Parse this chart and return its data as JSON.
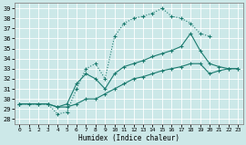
{
  "xlabel": "Humidex (Indice chaleur)",
  "xlim": [
    -0.5,
    23.5
  ],
  "ylim": [
    27.5,
    39.5
  ],
  "xticks": [
    0,
    1,
    2,
    3,
    4,
    5,
    6,
    7,
    8,
    9,
    10,
    11,
    12,
    13,
    14,
    15,
    16,
    17,
    18,
    19,
    20,
    21,
    22,
    23
  ],
  "yticks": [
    28,
    29,
    30,
    31,
    32,
    33,
    34,
    35,
    36,
    37,
    38,
    39
  ],
  "bg_color": "#cce8e8",
  "grid_color": "#b0d8d8",
  "line_color": "#1a7a6e",
  "line1_x": [
    0,
    1,
    3,
    4,
    5,
    6,
    7,
    8,
    9,
    10,
    11,
    12,
    13,
    14,
    15,
    16,
    17,
    18,
    19,
    20
  ],
  "line1_y": [
    29.5,
    29.5,
    29.5,
    28.5,
    28.7,
    31.0,
    33.0,
    33.5,
    32.0,
    36.2,
    37.5,
    38.0,
    38.2,
    38.5,
    39.0,
    38.2,
    38.0,
    37.5,
    36.5,
    36.2
  ],
  "line1_style": "--",
  "line2_x": [
    0,
    2,
    3,
    4,
    5,
    6,
    7,
    8,
    9,
    10,
    11,
    12,
    13,
    14,
    15,
    16,
    17,
    18,
    19,
    20,
    21,
    22,
    23
  ],
  "line2_y": [
    29.5,
    29.5,
    29.5,
    29.2,
    29.5,
    31.5,
    32.5,
    32.0,
    31.0,
    32.5,
    33.2,
    33.5,
    33.8,
    34.2,
    34.5,
    34.8,
    35.2,
    36.5,
    34.8,
    33.5,
    33.2,
    33.0,
    33.0
  ],
  "line3_x": [
    0,
    2,
    3,
    4,
    5,
    6,
    7,
    8,
    9,
    10,
    11,
    12,
    13,
    14,
    15,
    16,
    17,
    18,
    19,
    20,
    21,
    22,
    23
  ],
  "line3_y": [
    29.5,
    29.5,
    29.5,
    29.2,
    29.2,
    29.5,
    30.0,
    30.0,
    30.5,
    31.0,
    31.5,
    32.0,
    32.2,
    32.5,
    32.8,
    33.0,
    33.2,
    33.5,
    33.5,
    32.5,
    32.8,
    33.0,
    33.0
  ]
}
